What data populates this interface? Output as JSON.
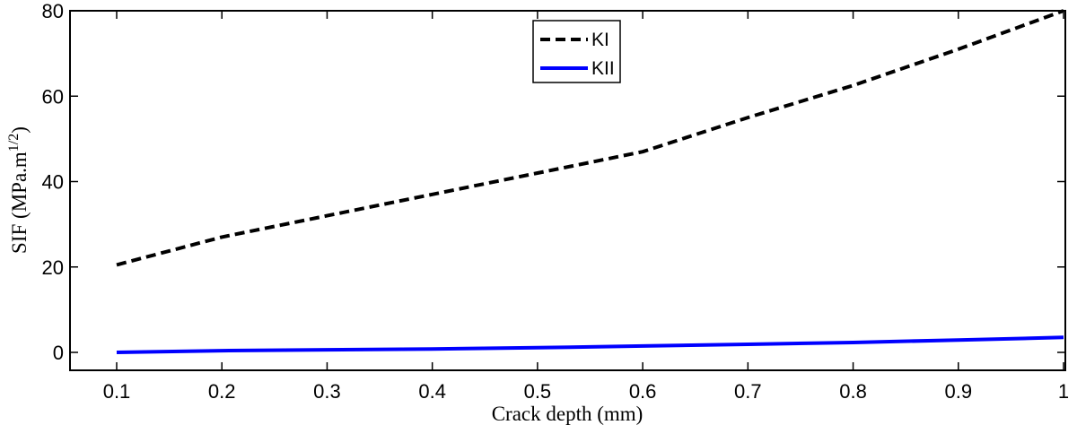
{
  "chart_data": {
    "type": "line",
    "xlabel": "Crack depth (mm)",
    "ylabel_main": "SIF (MPa.m",
    "ylabel_sup": "1/2",
    "ylabel_close": ")",
    "xlim": [
      0.1,
      1.0
    ],
    "ylim": [
      -4,
      80
    ],
    "x_ticks": [
      0.1,
      0.2,
      0.3,
      0.4,
      0.5,
      0.6,
      0.7,
      0.8,
      0.9,
      1.0
    ],
    "x_tick_labels": [
      "0.1",
      "0.2",
      "0.3",
      "0.4",
      "0.5",
      "0.6",
      "0.7",
      "0.8",
      "0.9",
      "1"
    ],
    "y_ticks": [
      0,
      20,
      40,
      60,
      80
    ],
    "y_tick_labels": [
      "0",
      "20",
      "40",
      "60",
      "80"
    ],
    "grid": false,
    "legend_position": "top-center",
    "x": [
      0.1,
      0.2,
      0.3,
      0.4,
      0.5,
      0.6,
      0.7,
      0.8,
      0.9,
      1.0
    ],
    "series": [
      {
        "name": "KI",
        "values": [
          20.5,
          27,
          32,
          37,
          42,
          47,
          55,
          62.5,
          71,
          80
        ],
        "color": "#000000",
        "dashed": true
      },
      {
        "name": "KII",
        "values": [
          0,
          0.4,
          0.6,
          0.8,
          1.1,
          1.5,
          1.9,
          2.3,
          2.9,
          3.5
        ],
        "color": "#0000ff",
        "dashed": false
      }
    ]
  }
}
